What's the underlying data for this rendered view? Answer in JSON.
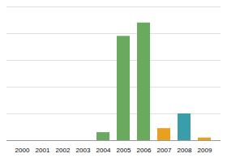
{
  "chart_data": {
    "type": "bar",
    "categories": [
      "2000",
      "2001",
      "2002",
      "2003",
      "2004",
      "2005",
      "2006",
      "2007",
      "2008",
      "2009"
    ],
    "values": [
      0,
      0,
      0,
      0,
      6,
      78,
      88,
      9,
      20,
      2
    ],
    "colors": [
      "#6aaa5e",
      "#6aaa5e",
      "#6aaa5e",
      "#6aaa5e",
      "#6aaa5e",
      "#6aaa5e",
      "#6aaa5e",
      "#e8a020",
      "#3a9daa",
      "#e8a020"
    ],
    "ylim": [
      0,
      100
    ],
    "yticks": [
      0,
      20,
      40,
      60,
      80,
      100
    ],
    "grid": true,
    "tick_labels": "x"
  }
}
